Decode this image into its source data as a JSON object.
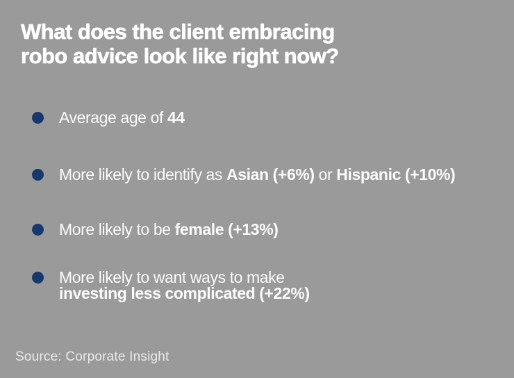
{
  "colors": {
    "background": "#9a9a9a",
    "navy": "#17386b",
    "title_text": "#ffffff",
    "body_text": "#fbfbfb",
    "source_text": "#eaeaea"
  },
  "title": {
    "line1": "What does the client embracing",
    "line2": "robo advice look like right now?"
  },
  "bullets": [
    {
      "segments": [
        {
          "text": "Average age of ",
          "bold": false
        },
        {
          "text": "44",
          "bold": true
        }
      ]
    },
    {
      "segments": [
        {
          "text": "More likely to identify as ",
          "bold": false
        },
        {
          "text": "Asian (+6%)",
          "bold": true
        },
        {
          "text": " or ",
          "bold": false
        },
        {
          "text": "Hispanic (+10%)",
          "bold": true
        }
      ]
    },
    {
      "segments": [
        {
          "text": "More likely to be ",
          "bold": false
        },
        {
          "text": "female (+13%)",
          "bold": true
        }
      ]
    },
    {
      "segments": [
        {
          "text": "More likely to want ways to make",
          "bold": false
        },
        {
          "text": "investing less complicated (+22%)",
          "bold": true,
          "break_before": true
        }
      ]
    }
  ],
  "source": "Source: Corporate Insight"
}
